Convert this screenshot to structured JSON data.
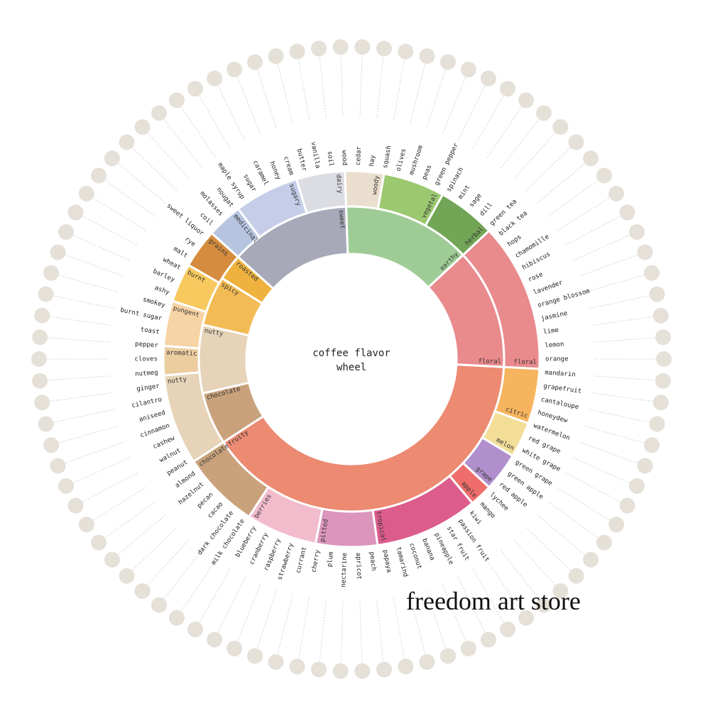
{
  "center": {
    "line1": "coffee flavor",
    "line2": "wheel"
  },
  "watermark": "freedom art store",
  "colors": {
    "sweet": "#a8a9b8",
    "earthy": "#9fcc96",
    "floral": "#e98a8d",
    "fruity": "#ec8a72",
    "chocolate": "#c9a27c",
    "nutty": "#e6d3b8",
    "spicy": "#f2bb55",
    "roasted": "#efb23e",
    "medicinal": "#b7c4e0",
    "sugary": "#c5cde8",
    "dairy": "#dcdde3",
    "woody": "#eadfcf",
    "vegetal": "#9cc870",
    "herbal": "#73a556",
    "citric": "#f7b45e",
    "melon": "#f3de98",
    "grape": "#b08fcc",
    "apple": "#ef6d6a",
    "tropical": "#dc5d8b",
    "pitted": "#dc96bc",
    "berries": "#f2bccd",
    "grains": "#d58c3e",
    "burnt": "#f7c95e",
    "pungent": "#f7d4a5",
    "aromatic": "#eccda0",
    "icon": "#cfc6b8",
    "tick": "#c9c9c9"
  },
  "inner_ring": [
    {
      "name": "sweet",
      "label": "sweet",
      "start": -48,
      "end": -2
    },
    {
      "name": "earthy",
      "label": "earthy",
      "start": -2,
      "end": 47
    },
    {
      "name": "floral",
      "label": "floral",
      "start": 47,
      "end": 93
    },
    {
      "name": "fruity",
      "label": "fruity",
      "start": 93,
      "end": 237
    },
    {
      "name": "chocolate",
      "label": "chocolate",
      "start": 237,
      "end": 257
    },
    {
      "name": "nutty",
      "label": "nutty",
      "start": 257,
      "end": 283
    },
    {
      "name": "spicy",
      "label": "spicy",
      "start": 283,
      "end": 302
    },
    {
      "name": "roasted",
      "label": "roasted",
      "start": 302,
      "end": 312
    }
  ],
  "middle_ring": [
    {
      "name": "medicinal",
      "label": "medicinal",
      "start": -48,
      "end": -37
    },
    {
      "name": "sugary",
      "label": "sugary",
      "start": -37,
      "end": -17
    },
    {
      "name": "dairy",
      "label": "dairy",
      "start": -17,
      "end": -2
    },
    {
      "name": "woody",
      "label": "woody",
      "start": -2,
      "end": 10
    },
    {
      "name": "vegetal",
      "label": "vegetal",
      "start": 10,
      "end": 29
    },
    {
      "name": "herbal",
      "label": "herbal",
      "start": 29,
      "end": 47
    },
    {
      "name": "floral",
      "label": "floral",
      "start": 47,
      "end": 93
    },
    {
      "name": "citric",
      "label": "citric",
      "start": 93,
      "end": 110
    },
    {
      "name": "melon",
      "label": "melon",
      "start": 110,
      "end": 121
    },
    {
      "name": "grape",
      "label": "grape",
      "start": 121,
      "end": 133
    },
    {
      "name": "apple",
      "label": "apple",
      "start": 133,
      "end": 140
    },
    {
      "name": "tropical",
      "label": "tropical",
      "start": 140,
      "end": 172
    },
    {
      "name": "pitted",
      "label": "pitted",
      "start": 172,
      "end": 191
    },
    {
      "name": "berries",
      "label": "berries",
      "start": 191,
      "end": 213
    },
    {
      "name": "chocolate",
      "label": "chocolate",
      "start": 213,
      "end": 237
    },
    {
      "name": "nutty",
      "label": "nutty",
      "start": 237,
      "end": 265
    },
    {
      "name": "aromatic",
      "label": "aromatic",
      "start": 265,
      "end": 274
    },
    {
      "name": "pungent",
      "label": "pungent",
      "start": 274,
      "end": 288
    },
    {
      "name": "burnt",
      "label": "burnt",
      "start": 288,
      "end": 300
    },
    {
      "name": "grains",
      "label": "grains",
      "start": 300,
      "end": 312
    }
  ],
  "outer_labels": [
    "coil",
    "molasses",
    "nougat",
    "maple syrup",
    "sugar",
    "caramel",
    "honey",
    "cream",
    "butter",
    "vanilla",
    "soil",
    "wood",
    "cedar",
    "hay",
    "squash",
    "olives",
    "mushroom",
    "peas",
    "green pepper",
    "spinach",
    "mint",
    "sage",
    "dill",
    "green tea",
    "black tea",
    "hops",
    "chamomille",
    "hibiscus",
    "rose",
    "lavender",
    "orange blossom",
    "jasmine",
    "lime",
    "lemon",
    "orange",
    "mandarin",
    "grapefruit",
    "cantaloupe",
    "honeydew",
    "watermelon",
    "red grape",
    "white grape",
    "green grape",
    "green apple",
    "red apple",
    "lychee",
    "mango",
    "kiwi",
    "passion fruit",
    "star fruit",
    "pineapple",
    "banana",
    "coconut",
    "tamarind",
    "papaya",
    "peach",
    "apricot",
    "nectarine",
    "plum",
    "cherry",
    "currant",
    "strawberry",
    "raspberry",
    "cranberry",
    "blueberry",
    "milk chocolate",
    "dark chocolate",
    "cacao",
    "pecan",
    "hazelnut",
    "almond",
    "peanut",
    "walnut",
    "cashew",
    "cinnamon",
    "aniseed",
    "cilantro",
    "ginger",
    "nutmeg",
    "cloves",
    "pepper",
    "toast",
    "burnt sugar",
    "smokey",
    "ashy",
    "barley",
    "wheat",
    "malt",
    "rye",
    "sweet liquor"
  ]
}
